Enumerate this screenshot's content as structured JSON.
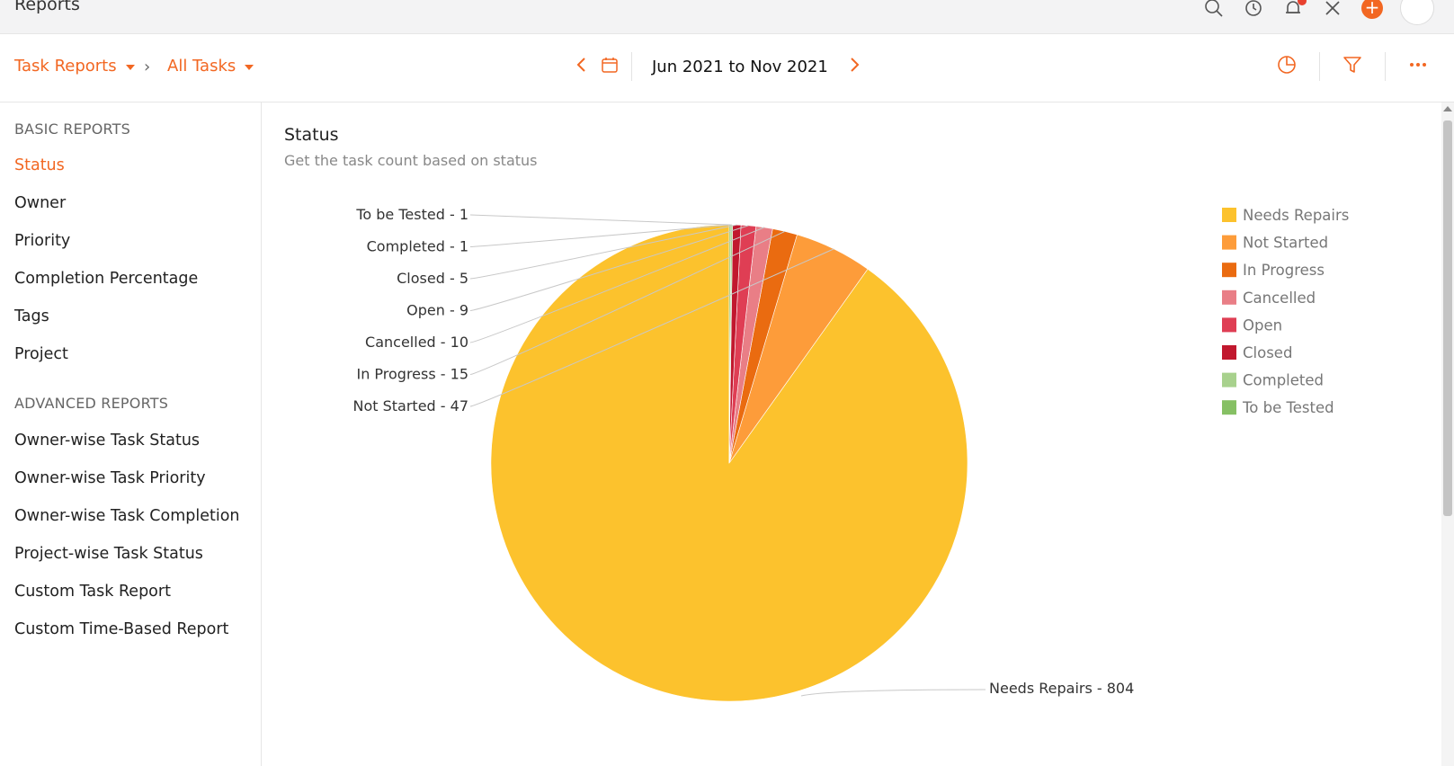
{
  "app": {
    "title": "Reports"
  },
  "breadcrumb": {
    "report_type": "Task Reports",
    "filter": "All Tasks"
  },
  "date_range": {
    "label": "Jun 2021 to Nov 2021"
  },
  "sidebar": {
    "basic_heading": "BASIC REPORTS",
    "basic_items": [
      "Status",
      "Owner",
      "Priority",
      "Completion Percentage",
      "Tags",
      "Project"
    ],
    "advanced_heading": "ADVANCED REPORTS",
    "advanced_items": [
      "Owner-wise Task Status",
      "Owner-wise Task Priority",
      "Owner-wise Task Completion",
      "Project-wise Task Status",
      "Custom Task Report",
      "Custom Time-Based Report"
    ],
    "active_item": "Status"
  },
  "report": {
    "title": "Status",
    "subtitle": "Get the task count based on status"
  },
  "icons": {
    "top": [
      "search-icon",
      "clock-icon",
      "bell-icon",
      "tools-icon",
      "plus-icon",
      "avatar"
    ],
    "toolbar": [
      "chart-type-icon",
      "filter-icon",
      "more-icon"
    ]
  },
  "chart_data": {
    "type": "pie",
    "title": "Status",
    "legend_position": "right",
    "slices": [
      {
        "label": "Needs Repairs",
        "value": 804,
        "color": "#fcc22d"
      },
      {
        "label": "Not Started",
        "value": 47,
        "color": "#fd9c3a"
      },
      {
        "label": "In Progress",
        "value": 15,
        "color": "#ea6b10"
      },
      {
        "label": "Cancelled",
        "value": 10,
        "color": "#e97e86"
      },
      {
        "label": "Open",
        "value": 9,
        "color": "#df3e54"
      },
      {
        "label": "Closed",
        "value": 5,
        "color": "#c1182e"
      },
      {
        "label": "Completed",
        "value": 1,
        "color": "#a8d18d"
      },
      {
        "label": "To be Tested",
        "value": 1,
        "color": "#86c064"
      }
    ]
  }
}
